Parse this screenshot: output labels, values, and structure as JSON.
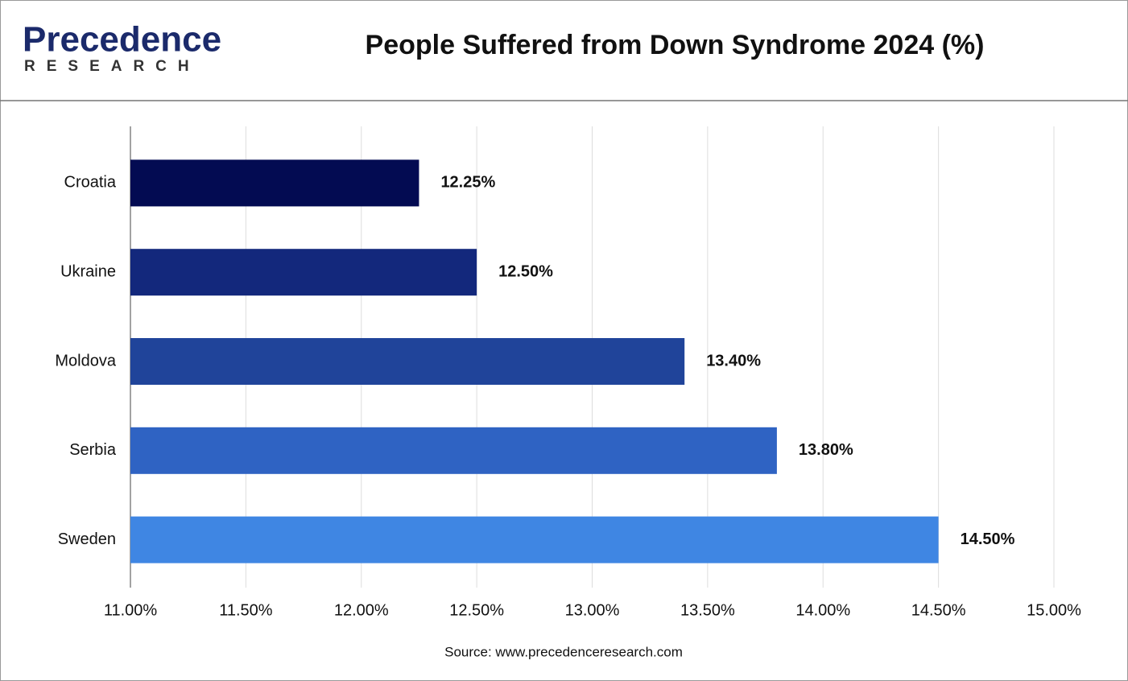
{
  "logo": {
    "name": "Precedence",
    "tagline": "RESEARCH"
  },
  "chart_data": {
    "type": "bar",
    "orientation": "horizontal",
    "title": "People Suffered from Down Syndrome 2024 (%)",
    "categories": [
      "Croatia",
      "Ukraine",
      "Moldova",
      "Serbia",
      "Sweden"
    ],
    "values": [
      12.25,
      12.5,
      13.4,
      13.8,
      14.5
    ],
    "value_labels": [
      "12.25%",
      "12.50%",
      "13.40%",
      "13.80%",
      "14.50%"
    ],
    "colors": [
      "#030b52",
      "#13287c",
      "#20449a",
      "#2f63c3",
      "#3f86e3"
    ],
    "xlim": [
      11,
      15
    ],
    "xticks": [
      {
        "value": 11,
        "label": "11.00%"
      },
      {
        "value": 11.5,
        "label": "11.50%"
      },
      {
        "value": 12,
        "label": "12.00%"
      },
      {
        "value": 12.5,
        "label": "12.50%"
      },
      {
        "value": 13,
        "label": "13.00%"
      },
      {
        "value": 13.5,
        "label": "13.50%"
      },
      {
        "value": 14,
        "label": "14.00%"
      },
      {
        "value": 14.5,
        "label": "14.50%"
      },
      {
        "value": 15,
        "label": "15.00%"
      }
    ],
    "grid": true,
    "source": "Source: www.precedenceresearch.com"
  }
}
